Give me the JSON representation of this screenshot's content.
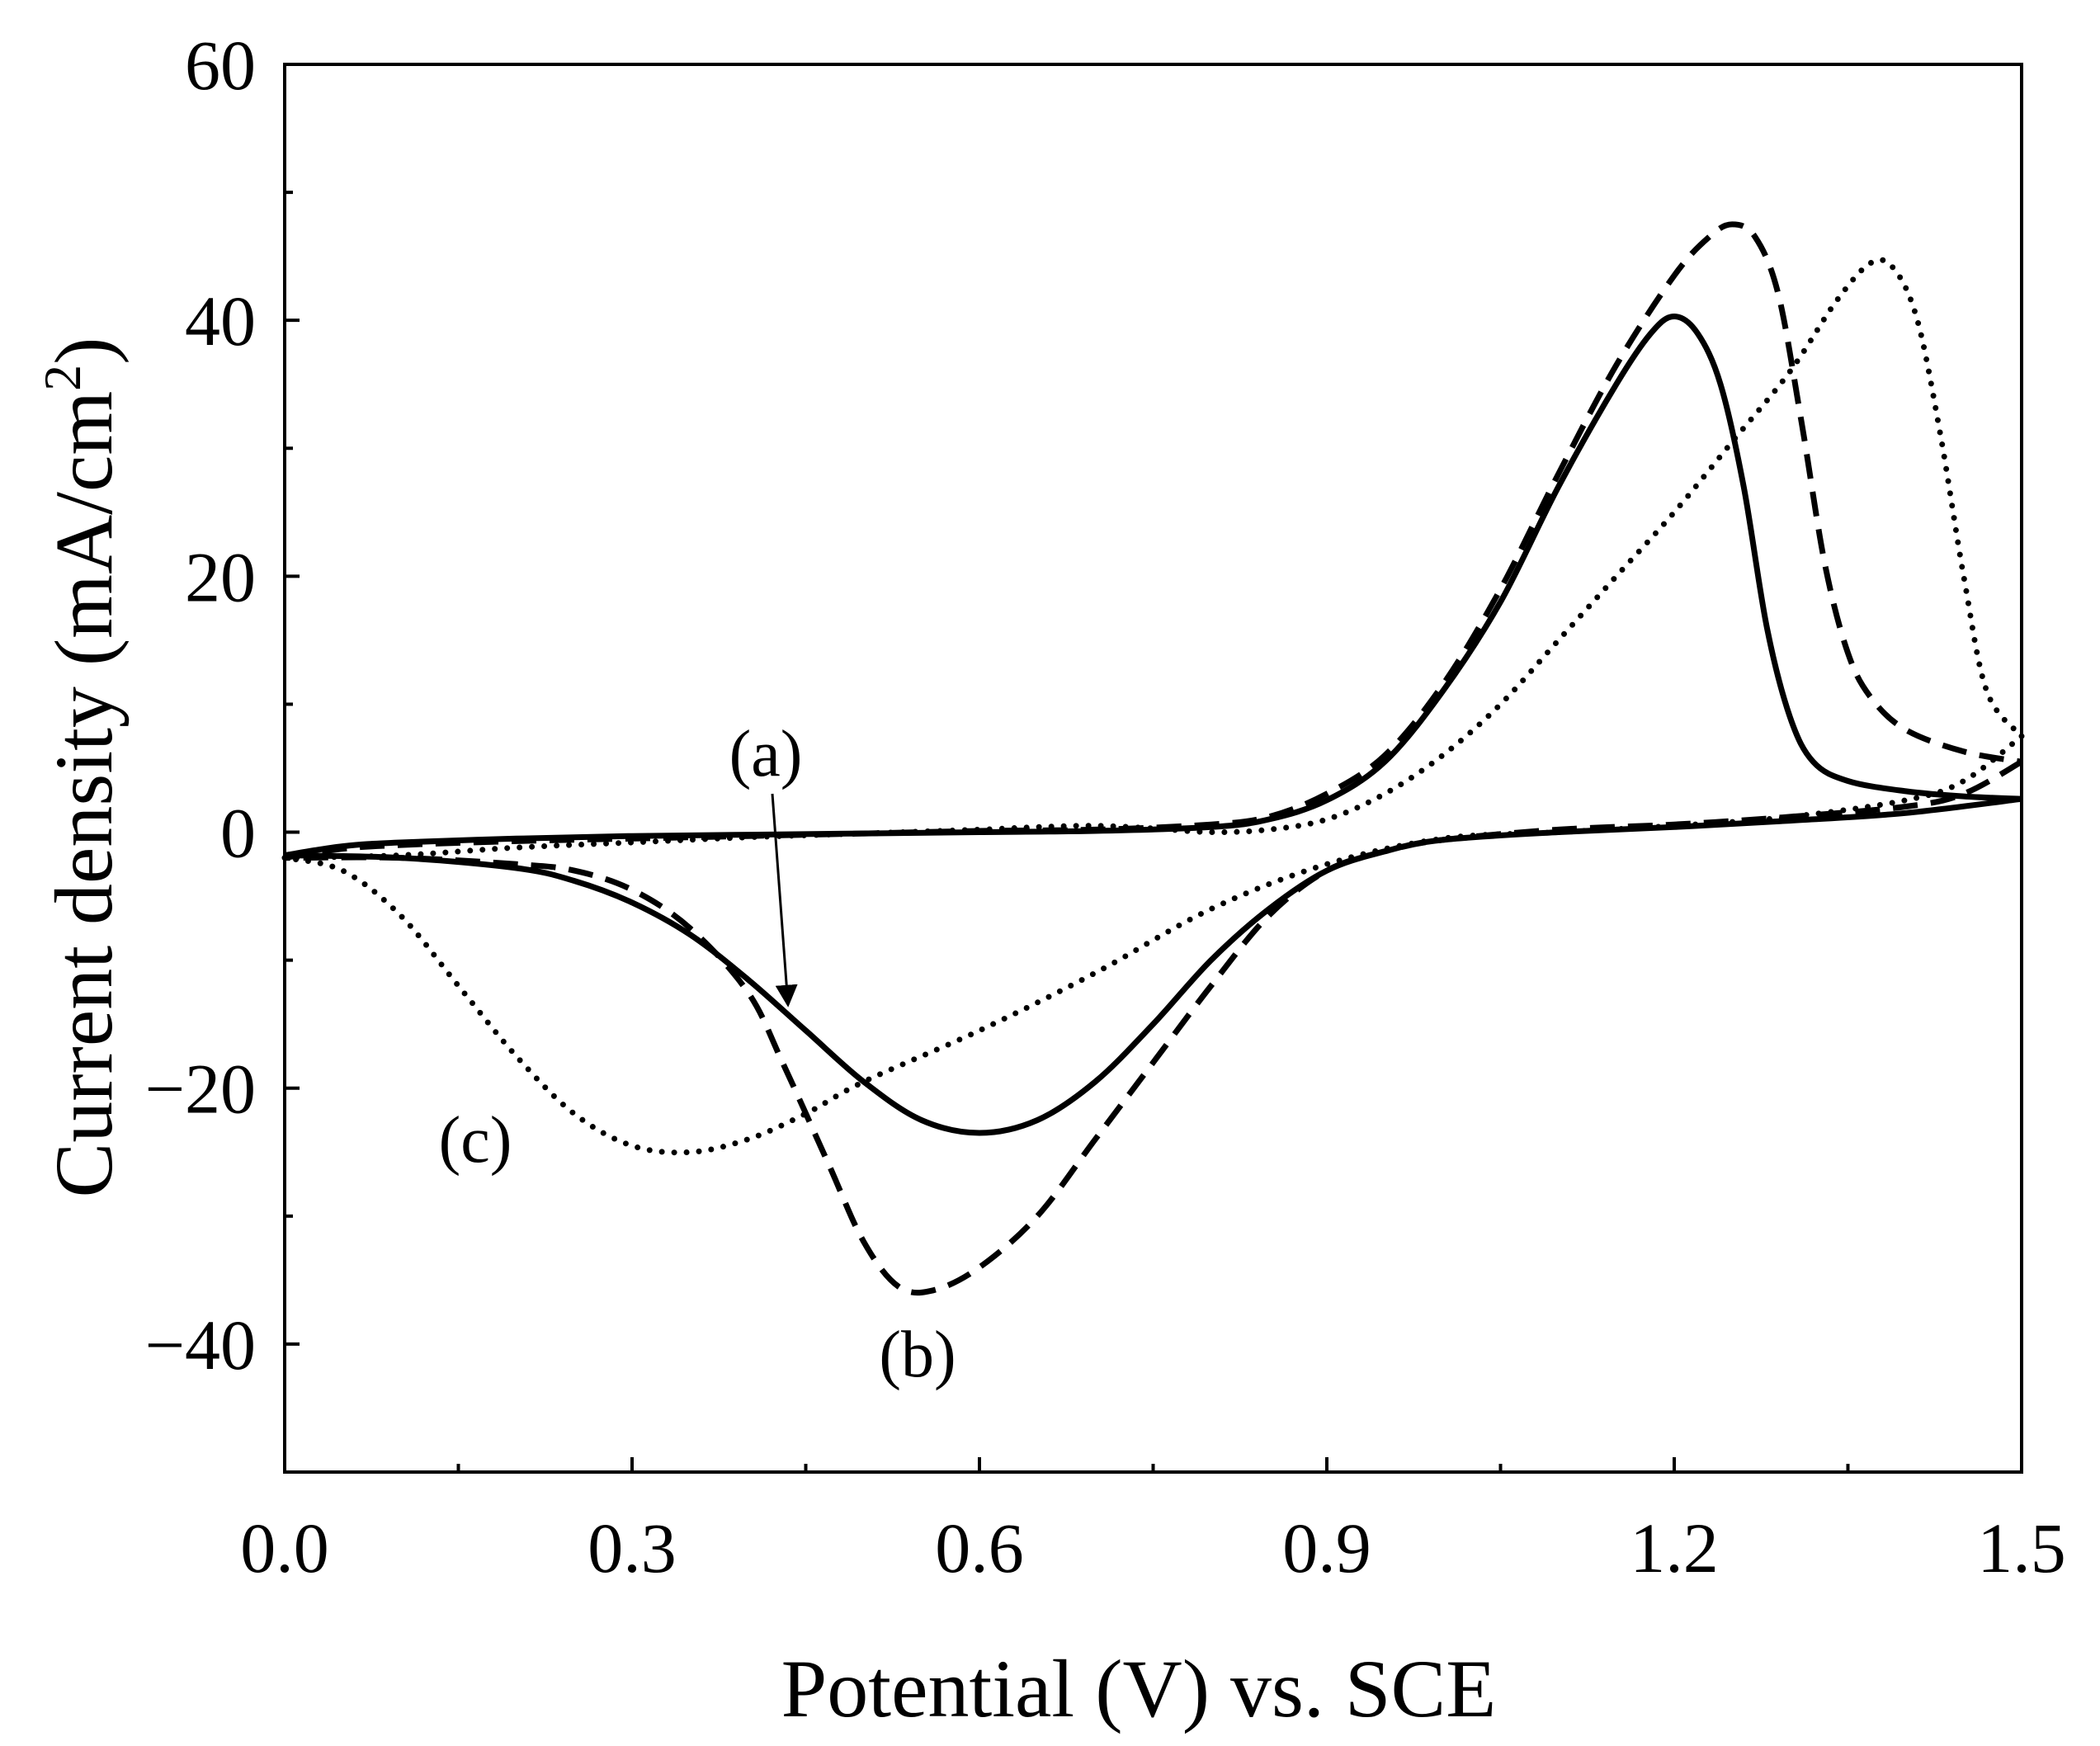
{
  "chart_data": {
    "type": "line",
    "title": "",
    "xlabel": "Potential (V) vs. SCE",
    "ylabel": "Current density (mA/cm",
    "ylabel_sup": "2",
    "ylabel_close": ")",
    "xlim": [
      0,
      1.5
    ],
    "ylim": [
      -50,
      60
    ],
    "x_ticks": [
      0.0,
      0.3,
      0.6,
      0.9,
      1.2,
      1.5
    ],
    "x_tick_labels": [
      "0.0",
      "0.3",
      "0.6",
      "0.9",
      "1.2",
      "1.5"
    ],
    "x_minor_ticks": [
      0.15,
      0.45,
      0.75,
      1.05,
      1.35
    ],
    "y_ticks": [
      -40,
      -20,
      0,
      20,
      40,
      60
    ],
    "y_tick_labels": [
      "−40",
      "−20",
      "0",
      "20",
      "40",
      "60"
    ],
    "y_minor_ticks": [
      -30,
      -10,
      10,
      30,
      50
    ],
    "grid": false,
    "series": [
      {
        "name": "(a)",
        "style": "solid",
        "forward": [
          [
            0.0,
            -1.8
          ],
          [
            0.05,
            -1.1
          ],
          [
            0.1,
            -0.8
          ],
          [
            0.2,
            -0.5
          ],
          [
            0.3,
            -0.3
          ],
          [
            0.4,
            -0.2
          ],
          [
            0.5,
            -0.1
          ],
          [
            0.6,
            0.0
          ],
          [
            0.7,
            0.1
          ],
          [
            0.8,
            0.4
          ],
          [
            0.85,
            1.0
          ],
          [
            0.9,
            2.5
          ],
          [
            0.95,
            5.5
          ],
          [
            1.0,
            11.0
          ],
          [
            1.05,
            18.0
          ],
          [
            1.1,
            27.0
          ],
          [
            1.15,
            35.0
          ],
          [
            1.18,
            39.0
          ],
          [
            1.2,
            40.3
          ],
          [
            1.22,
            39.0
          ],
          [
            1.24,
            35.0
          ],
          [
            1.26,
            27.0
          ],
          [
            1.28,
            16.0
          ],
          [
            1.3,
            9.0
          ],
          [
            1.32,
            5.5
          ],
          [
            1.35,
            4.0
          ],
          [
            1.4,
            3.2
          ],
          [
            1.45,
            2.8
          ],
          [
            1.5,
            2.6
          ]
        ],
        "reverse": [
          [
            1.5,
            2.6
          ],
          [
            1.4,
            1.5
          ],
          [
            1.3,
            0.9
          ],
          [
            1.2,
            0.4
          ],
          [
            1.1,
            0.0
          ],
          [
            1.0,
            -0.6
          ],
          [
            0.95,
            -1.5
          ],
          [
            0.9,
            -3.0
          ],
          [
            0.85,
            -6.0
          ],
          [
            0.8,
            -10.0
          ],
          [
            0.75,
            -15.0
          ],
          [
            0.7,
            -19.5
          ],
          [
            0.65,
            -22.5
          ],
          [
            0.6,
            -23.5
          ],
          [
            0.55,
            -22.5
          ],
          [
            0.5,
            -19.5
          ],
          [
            0.45,
            -15.5
          ],
          [
            0.4,
            -11.5
          ],
          [
            0.35,
            -8.0
          ],
          [
            0.3,
            -5.5
          ],
          [
            0.25,
            -3.8
          ],
          [
            0.2,
            -2.8
          ],
          [
            0.1,
            -2.0
          ],
          [
            0.0,
            -1.8
          ]
        ]
      },
      {
        "name": "(b)",
        "style": "dashed",
        "forward": [
          [
            0.0,
            -2.0
          ],
          [
            0.05,
            -1.3
          ],
          [
            0.1,
            -1.0
          ],
          [
            0.2,
            -0.7
          ],
          [
            0.3,
            -0.5
          ],
          [
            0.4,
            -0.3
          ],
          [
            0.5,
            -0.1
          ],
          [
            0.6,
            0.1
          ],
          [
            0.7,
            0.2
          ],
          [
            0.8,
            0.6
          ],
          [
            0.85,
            1.2
          ],
          [
            0.9,
            3.0
          ],
          [
            0.95,
            6.0
          ],
          [
            1.0,
            11.5
          ],
          [
            1.05,
            19.0
          ],
          [
            1.1,
            28.0
          ],
          [
            1.15,
            36.5
          ],
          [
            1.2,
            43.5
          ],
          [
            1.23,
            46.5
          ],
          [
            1.25,
            47.5
          ],
          [
            1.27,
            46.5
          ],
          [
            1.29,
            42.0
          ],
          [
            1.31,
            32.0
          ],
          [
            1.33,
            21.0
          ],
          [
            1.35,
            14.0
          ],
          [
            1.37,
            10.5
          ],
          [
            1.4,
            8.0
          ],
          [
            1.45,
            6.3
          ],
          [
            1.5,
            5.5
          ]
        ],
        "reverse": [
          [
            1.5,
            5.5
          ],
          [
            1.45,
            3.0
          ],
          [
            1.4,
            2.0
          ],
          [
            1.3,
            1.2
          ],
          [
            1.2,
            0.6
          ],
          [
            1.1,
            0.2
          ],
          [
            1.0,
            -0.6
          ],
          [
            0.95,
            -1.5
          ],
          [
            0.9,
            -3.0
          ],
          [
            0.85,
            -6.5
          ],
          [
            0.8,
            -12.0
          ],
          [
            0.75,
            -18.0
          ],
          [
            0.7,
            -24.0
          ],
          [
            0.65,
            -30.0
          ],
          [
            0.6,
            -34.0
          ],
          [
            0.56,
            -35.8
          ],
          [
            0.53,
            -35.5
          ],
          [
            0.5,
            -32.0
          ],
          [
            0.47,
            -26.0
          ],
          [
            0.43,
            -18.0
          ],
          [
            0.4,
            -12.5
          ],
          [
            0.35,
            -7.5
          ],
          [
            0.3,
            -4.5
          ],
          [
            0.25,
            -3.0
          ],
          [
            0.2,
            -2.5
          ],
          [
            0.1,
            -2.0
          ],
          [
            0.0,
            -2.0
          ]
        ]
      },
      {
        "name": "(c)",
        "style": "dotted",
        "forward": [
          [
            0.0,
            -2.0
          ],
          [
            0.1,
            -1.8
          ],
          [
            0.2,
            -1.2
          ],
          [
            0.3,
            -0.8
          ],
          [
            0.4,
            -0.4
          ],
          [
            0.5,
            -0.1
          ],
          [
            0.6,
            0.2
          ],
          [
            0.65,
            0.4
          ],
          [
            0.7,
            0.5
          ],
          [
            0.75,
            0.3
          ],
          [
            0.8,
            0.0
          ],
          [
            0.85,
            0.2
          ],
          [
            0.9,
            1.0
          ],
          [
            0.95,
            3.0
          ],
          [
            1.0,
            6.0
          ],
          [
            1.05,
            10.0
          ],
          [
            1.1,
            15.0
          ],
          [
            1.15,
            20.0
          ],
          [
            1.2,
            25.0
          ],
          [
            1.25,
            30.5
          ],
          [
            1.3,
            36.0
          ],
          [
            1.34,
            41.5
          ],
          [
            1.37,
            44.5
          ],
          [
            1.39,
            44.0
          ],
          [
            1.41,
            40.0
          ],
          [
            1.43,
            31.0
          ],
          [
            1.45,
            20.0
          ],
          [
            1.47,
            11.0
          ],
          [
            1.5,
            7.5
          ]
        ],
        "reverse": [
          [
            1.5,
            7.5
          ],
          [
            1.45,
            4.0
          ],
          [
            1.4,
            2.5
          ],
          [
            1.3,
            1.2
          ],
          [
            1.2,
            0.5
          ],
          [
            1.1,
            0.0
          ],
          [
            1.0,
            -0.5
          ],
          [
            0.9,
            -2.5
          ],
          [
            0.8,
            -6.0
          ],
          [
            0.7,
            -11.0
          ],
          [
            0.6,
            -15.5
          ],
          [
            0.5,
            -19.5
          ],
          [
            0.45,
            -22.0
          ],
          [
            0.4,
            -24.0
          ],
          [
            0.35,
            -25.0
          ],
          [
            0.3,
            -24.5
          ],
          [
            0.25,
            -22.0
          ],
          [
            0.2,
            -17.5
          ],
          [
            0.15,
            -12.0
          ],
          [
            0.1,
            -6.5
          ],
          [
            0.05,
            -3.0
          ],
          [
            0.0,
            -2.0
          ]
        ]
      }
    ],
    "annotations": [
      {
        "text": "(a)",
        "series": "(a)",
        "arrow_to": [
          0.43,
          -13.0
        ]
      },
      {
        "text": "(b)",
        "series": "(b)"
      },
      {
        "text": "(c)",
        "series": "(c)"
      }
    ]
  }
}
